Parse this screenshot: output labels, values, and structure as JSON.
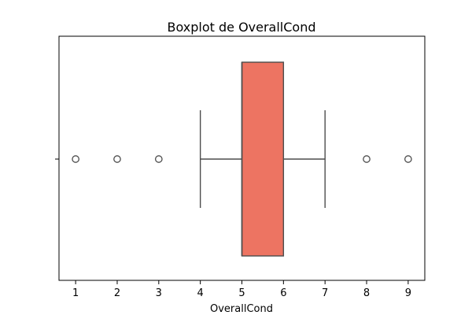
{
  "chart_data": {
    "type": "boxplot",
    "orientation": "horizontal",
    "title": "Boxplot de OverallCond",
    "xlabel": "OverallCond",
    "ylabel": "",
    "xlim": [
      0.6,
      9.4
    ],
    "x_ticks": [
      1,
      2,
      3,
      4,
      5,
      6,
      7,
      8,
      9
    ],
    "y_ticks": [
      ""
    ],
    "grid": false,
    "box": {
      "whisker_low": 4,
      "q1": 5,
      "median": 5,
      "q3": 6,
      "whisker_high": 7,
      "outliers": [
        1,
        2,
        3,
        8,
        9
      ],
      "fill_color": "#ed7462",
      "line_color": "#4d4d4d"
    }
  }
}
